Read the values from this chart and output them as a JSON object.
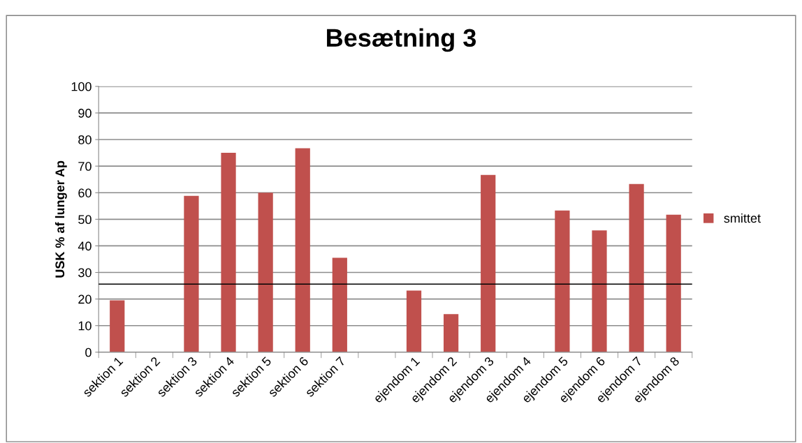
{
  "chart_data": {
    "type": "bar",
    "title": "Besætning 3",
    "ylabel": "USK % af lunger Ap",
    "categories": [
      "sektion 1",
      "sektion 2",
      "sektion 3",
      "sektion 4",
      "sektion 5",
      "sektion 6",
      "sektion 7",
      null,
      "ejendom 1",
      "ejendom 2",
      "ejendom 3",
      "ejendom 4",
      "ejendom 5",
      "ejendom 6",
      "ejendom 7",
      "ejendom 8"
    ],
    "series": [
      {
        "name": "smittet",
        "color": "#c0504d",
        "values": [
          19.5,
          null,
          58.8,
          75,
          60,
          76.7,
          35.5,
          null,
          23.2,
          14.3,
          66.7,
          null,
          53.3,
          45.8,
          63.3,
          51.7
        ]
      }
    ],
    "ylim": [
      0,
      100
    ],
    "yticks": [
      0,
      10,
      20,
      30,
      40,
      50,
      60,
      70,
      80,
      90,
      100
    ],
    "grid": "y",
    "legend": "right",
    "ref_lines": [
      {
        "axis": "y",
        "value": 25.6,
        "color": "#000000"
      }
    ]
  }
}
